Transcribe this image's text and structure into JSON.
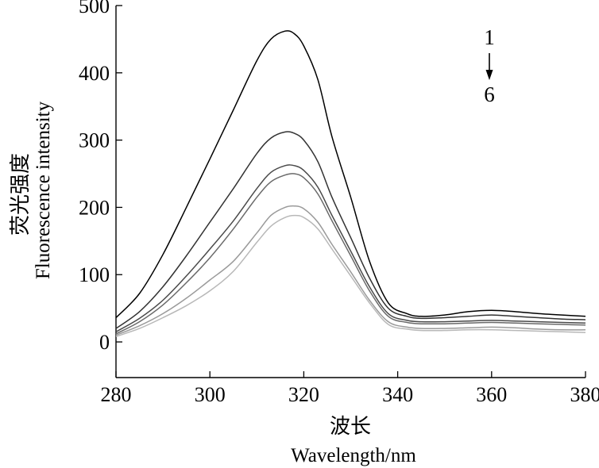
{
  "chart_data": {
    "type": "line",
    "xlabel_cn": "波长",
    "xlabel": "Wavelength/nm",
    "ylabel_cn": "荧光强度",
    "ylabel": "Fluorescence intensity",
    "xlim": [
      280,
      380
    ],
    "ylim": [
      -53,
      500
    ],
    "xticks": [
      "280",
      "300",
      "320",
      "340",
      "360",
      "380"
    ],
    "xtick_values": [
      280,
      300,
      320,
      340,
      360,
      380
    ],
    "yticks": [
      "0",
      "100",
      "200",
      "300",
      "400",
      "500"
    ],
    "ytick_values": [
      0,
      100,
      200,
      300,
      400,
      500
    ],
    "grid": false,
    "legend": {
      "start": "1",
      "end": "6",
      "placement": "top-right"
    },
    "series": [
      {
        "color": "#000000",
        "x": [
          280,
          285,
          290,
          295,
          300,
          305,
          310,
          313,
          316,
          318,
          320,
          323,
          326,
          330,
          334,
          338,
          342,
          345,
          350,
          355,
          360,
          365,
          370,
          375,
          380
        ],
        "y": [
          36,
          72,
          130,
          200,
          272,
          345,
          418,
          450,
          462,
          458,
          440,
          390,
          305,
          215,
          120,
          58,
          42,
          38,
          40,
          45,
          47,
          45,
          42,
          40,
          38
        ]
      },
      {
        "color": "#333333",
        "x": [
          280,
          285,
          290,
          295,
          300,
          305,
          310,
          313,
          316,
          318,
          320,
          323,
          326,
          330,
          334,
          338,
          342,
          345,
          350,
          355,
          360,
          365,
          370,
          375,
          380
        ],
        "y": [
          20,
          45,
          82,
          128,
          178,
          228,
          280,
          303,
          312,
          310,
          300,
          268,
          215,
          155,
          95,
          50,
          38,
          35,
          36,
          38,
          40,
          38,
          36,
          34,
          33
        ]
      },
      {
        "color": "#4a4a4a",
        "x": [
          280,
          285,
          290,
          295,
          300,
          305,
          310,
          313,
          316,
          318,
          320,
          323,
          326,
          330,
          334,
          338,
          342,
          345,
          350,
          355,
          360,
          365,
          370,
          375,
          380
        ],
        "y": [
          15,
          35,
          62,
          98,
          138,
          180,
          228,
          252,
          262,
          262,
          255,
          230,
          188,
          135,
          82,
          42,
          32,
          30,
          30,
          31,
          32,
          31,
          30,
          29,
          28
        ]
      },
      {
        "color": "#6a6a6a",
        "x": [
          280,
          285,
          290,
          295,
          300,
          305,
          310,
          313,
          316,
          318,
          320,
          323,
          326,
          330,
          334,
          338,
          342,
          345,
          350,
          355,
          360,
          365,
          370,
          375,
          380
        ],
        "y": [
          12,
          30,
          55,
          88,
          125,
          168,
          215,
          238,
          248,
          250,
          244,
          220,
          180,
          128,
          76,
          38,
          29,
          27,
          27,
          28,
          29,
          28,
          27,
          26,
          25
        ]
      },
      {
        "color": "#9a9a9a",
        "x": [
          280,
          285,
          290,
          295,
          300,
          305,
          310,
          313,
          316,
          318,
          320,
          323,
          326,
          330,
          334,
          338,
          342,
          345,
          350,
          355,
          360,
          365,
          370,
          375,
          380
        ],
        "y": [
          10,
          24,
          42,
          65,
          92,
          120,
          162,
          188,
          200,
          202,
          198,
          178,
          145,
          104,
          62,
          30,
          22,
          20,
          20,
          21,
          22,
          21,
          19,
          18,
          18
        ]
      },
      {
        "color": "#b8b8b8",
        "x": [
          280,
          285,
          290,
          295,
          300,
          305,
          310,
          313,
          316,
          318,
          320,
          323,
          326,
          330,
          334,
          338,
          342,
          345,
          350,
          355,
          360,
          365,
          370,
          375,
          380
        ],
        "y": [
          8,
          20,
          36,
          54,
          76,
          105,
          148,
          172,
          185,
          188,
          185,
          168,
          138,
          98,
          58,
          26,
          19,
          17,
          17,
          18,
          18,
          17,
          16,
          15,
          14
        ]
      }
    ]
  }
}
